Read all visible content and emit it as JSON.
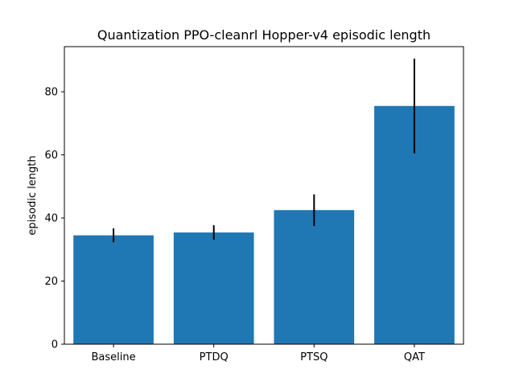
{
  "chart_data": {
    "type": "bar",
    "title": "Quantization PPO-cleanrl Hopper-v4 episodic length",
    "xlabel": "",
    "ylabel": "episodic length",
    "categories": [
      "Baseline",
      "PTDQ",
      "PTSQ",
      "QAT"
    ],
    "values": [
      34.5,
      35.4,
      42.5,
      75.5
    ],
    "errors": [
      2.2,
      2.3,
      5.0,
      15.0
    ],
    "ylim": [
      0,
      94.3
    ],
    "yticks": [
      0,
      20,
      40,
      60,
      80
    ],
    "grid": false,
    "bar_color": "#1f77b4",
    "error_color": "#000000"
  }
}
